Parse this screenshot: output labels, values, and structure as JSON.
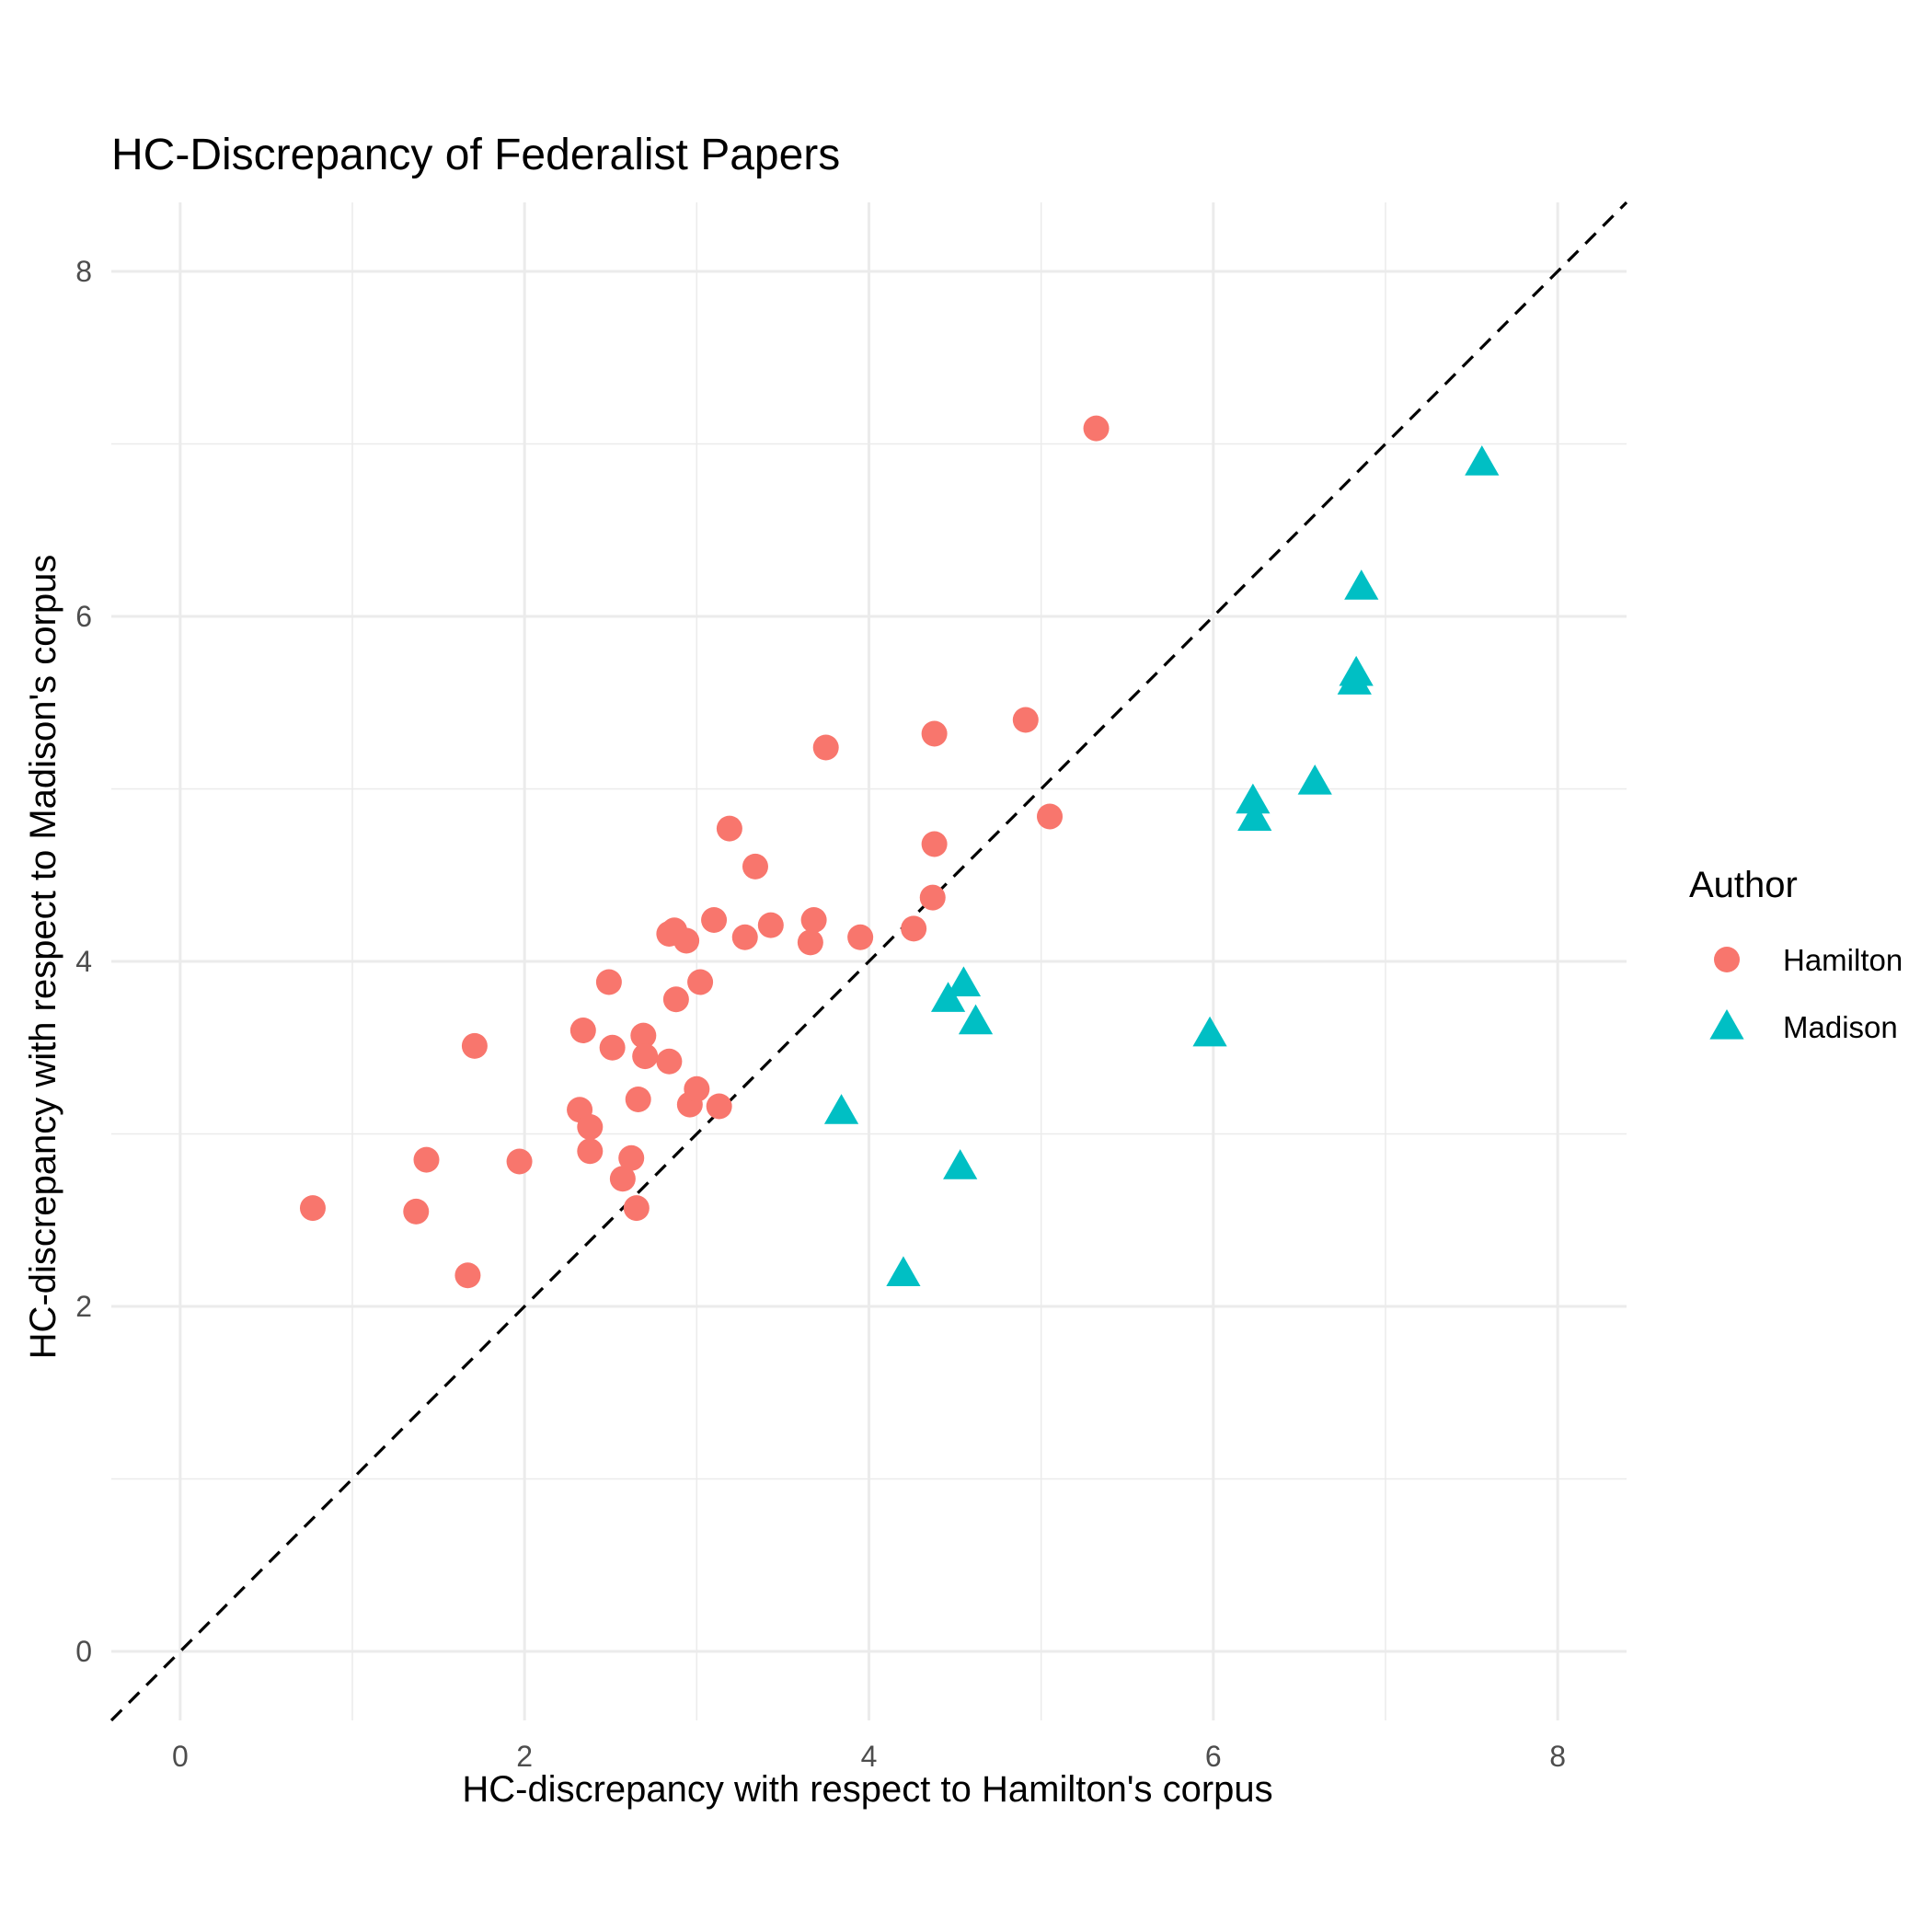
{
  "chart_data": {
    "type": "scatter",
    "title": "HC-Discrepancy of Federalist Papers",
    "xlabel": "HC-discrepancy with respect to Hamilton's corpus",
    "ylabel": "HC-discrepancy with respect to Madison's corpus",
    "xlim": [
      -0.4,
      8.4
    ],
    "ylim": [
      -0.4,
      8.4
    ],
    "x_ticks": [
      0,
      2,
      4,
      6,
      8
    ],
    "y_ticks": [
      0,
      2,
      4,
      6,
      8
    ],
    "x_tick_labels": [
      "0",
      "2",
      "4",
      "6",
      "8"
    ],
    "y_tick_labels": [
      "0",
      "2",
      "4",
      "6",
      "8"
    ],
    "grid": true,
    "reference_line": {
      "type": "identity",
      "style": "dashed",
      "color": "#000000"
    },
    "legend": {
      "title": "Author",
      "position": "right"
    },
    "series": [
      {
        "name": "Hamilton",
        "marker": "circle",
        "color": "#F8766D",
        "points": [
          [
            0.77,
            2.57
          ],
          [
            1.37,
            2.55
          ],
          [
            1.43,
            2.85
          ],
          [
            1.67,
            2.18
          ],
          [
            1.71,
            3.51
          ],
          [
            1.97,
            2.84
          ],
          [
            2.32,
            3.14
          ],
          [
            2.34,
            3.6
          ],
          [
            2.38,
            3.04
          ],
          [
            2.38,
            2.9
          ],
          [
            2.49,
            3.88
          ],
          [
            2.51,
            3.5
          ],
          [
            2.57,
            2.74
          ],
          [
            2.62,
            2.86
          ],
          [
            2.65,
            2.57
          ],
          [
            2.66,
            3.2
          ],
          [
            2.69,
            3.57
          ],
          [
            2.7,
            3.45
          ],
          [
            2.84,
            3.42
          ],
          [
            2.84,
            4.16
          ],
          [
            2.87,
            4.18
          ],
          [
            2.88,
            3.78
          ],
          [
            2.94,
            4.12
          ],
          [
            2.96,
            3.17
          ],
          [
            3.0,
            3.26
          ],
          [
            3.02,
            3.88
          ],
          [
            3.1,
            4.24
          ],
          [
            3.13,
            3.16
          ],
          [
            3.19,
            4.77
          ],
          [
            3.28,
            4.14
          ],
          [
            3.34,
            4.55
          ],
          [
            3.43,
            4.21
          ],
          [
            3.66,
            4.11
          ],
          [
            3.68,
            4.24
          ],
          [
            3.75,
            5.24
          ],
          [
            3.95,
            4.14
          ],
          [
            4.26,
            4.19
          ],
          [
            4.37,
            4.37
          ],
          [
            4.38,
            4.68
          ],
          [
            4.38,
            5.32
          ],
          [
            4.91,
            5.4
          ],
          [
            5.05,
            4.84
          ],
          [
            5.32,
            7.09
          ]
        ]
      },
      {
        "name": "Madison",
        "marker": "triangle",
        "color": "#00BFC4",
        "points": [
          [
            3.84,
            3.13
          ],
          [
            4.2,
            2.19
          ],
          [
            4.46,
            3.78
          ],
          [
            4.53,
            2.81
          ],
          [
            4.55,
            3.87
          ],
          [
            4.62,
            3.65
          ],
          [
            5.98,
            3.58
          ],
          [
            6.23,
            4.93
          ],
          [
            6.24,
            4.83
          ],
          [
            6.59,
            5.04
          ],
          [
            6.82,
            5.62
          ],
          [
            6.83,
            5.67
          ],
          [
            6.86,
            6.17
          ],
          [
            7.56,
            6.89
          ]
        ]
      }
    ]
  }
}
